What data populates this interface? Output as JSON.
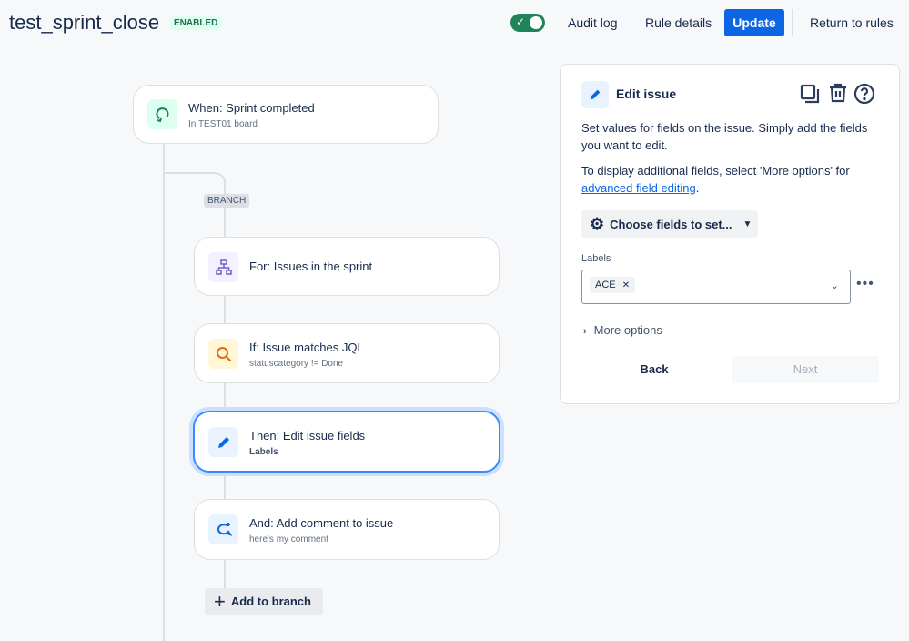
{
  "header": {
    "title": "test_sprint_close",
    "status_badge": "ENABLED",
    "audit_log": "Audit log",
    "rule_details": "Rule details",
    "update": "Update",
    "return": "Return to rules",
    "toggle_on": true
  },
  "flow": {
    "trigger": {
      "title": "When: Sprint completed",
      "subtitle": "In TEST01 board",
      "icon": "sprint-icon"
    },
    "branch_label": "BRANCH",
    "steps": [
      {
        "title": "For: Issues in the sprint",
        "subtitle": "",
        "icon": "hierarchy-icon"
      },
      {
        "title": "If: Issue matches JQL",
        "subtitle": "statuscategory != Done",
        "icon": "search-icon"
      },
      {
        "title": "Then: Edit issue fields",
        "subtitle": "Labels",
        "icon": "pencil-icon",
        "selected": true
      },
      {
        "title": "And: Add comment to issue",
        "subtitle": "here's my comment",
        "icon": "comment-icon"
      }
    ],
    "add_to_branch": "Add to branch"
  },
  "panel": {
    "title": "Edit issue",
    "desc1": "Set values for fields on the issue. Simply add the fields you want to edit.",
    "desc2_prefix": "To display additional fields, select 'More options' for ",
    "desc2_link": "advanced field editing",
    "desc2_suffix": ".",
    "choose_fields": "Choose fields to set...",
    "labels_label": "Labels",
    "labels_values": [
      "ACE"
    ],
    "more_options": "More options",
    "back": "Back",
    "next": "Next"
  },
  "colors": {
    "accent": "#0c66e4",
    "enabled": "#1f845a",
    "selected_border": "#388bff"
  }
}
